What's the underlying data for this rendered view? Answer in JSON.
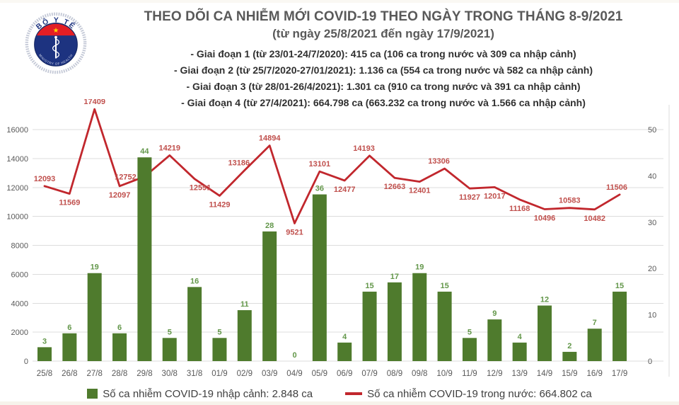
{
  "logo": {
    "top_text": "BỘ Y TẾ",
    "bottom_text": "MINISTRY OF HEALTH"
  },
  "header": {
    "title": "THEO DÕI CA NHIỄM MỚI COVID-19 THEO NGÀY TRONG THÁNG 8-9/2021",
    "subtitle": "(từ ngày 25/8/2021 đến ngày 17/9/2021)",
    "bullets": [
      "- Giai đoạn 1 (từ 23/01-24/7/2020): 415 ca (106 ca trong nước và 309 ca nhập cảnh)",
      "- Giai đoạn 2 (từ 25/7/2020-27/01/2021): 1.136 ca (554 ca trong nước và 582 ca nhập cảnh)",
      "- Giai đoạn 3 (từ 28/01-26/4/2021): 1.301 ca (910 ca trong nước và 391 ca nhập cảnh)",
      "- Giai đoạn 4 (từ 27/4/2021): 664.798 ca (663.232 ca trong nước và 1.566 ca nhập cảnh)"
    ]
  },
  "legend": {
    "bars_label": "Số ca nhiễm COVID-19 nhập cảnh: 2.848 ca",
    "line_label": "Số ca nhiễm COVID-19 trong nước: 664.802 ca"
  },
  "colors": {
    "bar": "#4f7b2d",
    "bar_label": "#63974a",
    "line": "#c1272d",
    "line_label": "#c0504d",
    "axis_text": "#595959",
    "grid": "#dcdcdc",
    "logo_navy": "#1d3380",
    "logo_red": "#e31e24",
    "logo_star": "#ffd200"
  },
  "chart_data": {
    "type": "bar+line",
    "categories": [
      "25/8",
      "26/8",
      "27/8",
      "28/8",
      "29/8",
      "30/8",
      "31/8",
      "01/9",
      "02/9",
      "03/9",
      "04/9",
      "05/9",
      "06/9",
      "07/9",
      "08/9",
      "09/8",
      "10/9",
      "11/9",
      "12/9",
      "13/9",
      "14/9",
      "15/9",
      "16/9",
      "17/9"
    ],
    "series": [
      {
        "name": "Số ca nhiễm COVID-19 nhập cảnh",
        "type": "bar",
        "axis": "right",
        "values": [
          3,
          6,
          19,
          6,
          44,
          5,
          16,
          5,
          11,
          28,
          0,
          36,
          4,
          15,
          17,
          19,
          15,
          5,
          9,
          4,
          12,
          2,
          7,
          15
        ]
      },
      {
        "name": "Số ca nhiễm COVID-19 trong nước",
        "type": "line",
        "axis": "left",
        "values": [
          12093,
          11569,
          17409,
          12097,
          12752,
          14219,
          12591,
          11429,
          13186,
          14894,
          9521,
          13101,
          12477,
          14193,
          12663,
          12401,
          13306,
          11927,
          12017,
          11168,
          10496,
          10583,
          10482,
          11506
        ],
        "label_pos": [
          "above",
          "below",
          "above",
          "below",
          "left",
          "above",
          "below",
          "below",
          "above",
          "above",
          "below",
          "above",
          "below",
          "above",
          "below",
          "below",
          "above",
          "below",
          "below",
          "below",
          "below",
          "above",
          "below",
          "above"
        ],
        "label_dx": {
          "6": 8,
          "8": -8,
          "13": -8,
          "16": -8,
          "23": -4
        }
      }
    ],
    "left_axis": {
      "ticks": [
        0,
        2000,
        4000,
        6000,
        8000,
        10000,
        12000,
        14000,
        16000
      ]
    },
    "right_axis": {
      "ticks": [
        0,
        10,
        20,
        30,
        40,
        50
      ]
    },
    "grid": true,
    "legend_position": "bottom"
  }
}
